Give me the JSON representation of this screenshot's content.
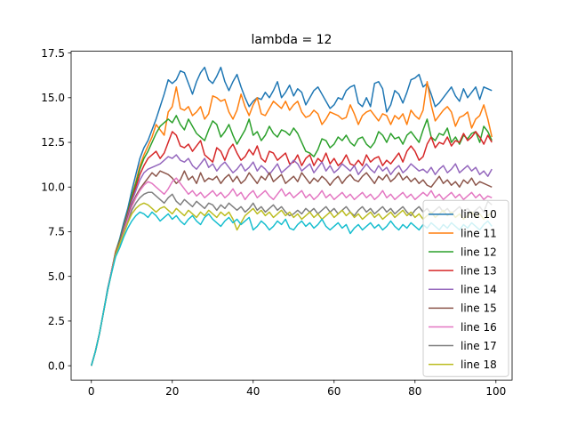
{
  "chart_data": {
    "type": "line",
    "title": "lambda = 12",
    "xlabel": "",
    "ylabel": "",
    "xlim": [
      -5,
      104
    ],
    "ylim": [
      -0.8,
      17.6
    ],
    "x_ticks": [
      0,
      20,
      40,
      60,
      80,
      100
    ],
    "y_ticks": [
      0.0,
      2.5,
      5.0,
      7.5,
      10.0,
      12.5,
      15.0,
      17.5
    ],
    "x_tick_labels": [
      "0",
      "20",
      "40",
      "60",
      "80",
      "100"
    ],
    "y_tick_labels": [
      "0.0",
      "2.5",
      "5.0",
      "7.5",
      "10.0",
      "12.5",
      "15.0",
      "17.5"
    ],
    "grid": false,
    "legend_position": "lower-right",
    "x": [
      0,
      1,
      2,
      3,
      4,
      5,
      6,
      7,
      8,
      9,
      10,
      11,
      12,
      13,
      14,
      15,
      16,
      17,
      18,
      19,
      20,
      21,
      22,
      23,
      24,
      25,
      26,
      27,
      28,
      29,
      30,
      31,
      32,
      33,
      34,
      35,
      36,
      37,
      38,
      39,
      40,
      41,
      42,
      43,
      44,
      45,
      46,
      47,
      48,
      49,
      50,
      51,
      52,
      53,
      54,
      55,
      56,
      57,
      58,
      59,
      60,
      61,
      62,
      63,
      64,
      65,
      66,
      67,
      68,
      69,
      70,
      71,
      72,
      73,
      74,
      75,
      76,
      77,
      78,
      79,
      80,
      81,
      82,
      83,
      84,
      85,
      86,
      87,
      88,
      89,
      90,
      91,
      92,
      93,
      94,
      95,
      96,
      97,
      98,
      99
    ],
    "series": [
      {
        "name": "line 10",
        "color": "#1f77b4",
        "values": [
          0.0,
          0.8,
          1.8,
          3.0,
          4.3,
          5.3,
          6.4,
          7.1,
          8.0,
          8.8,
          9.8,
          10.7,
          11.6,
          12.2,
          12.6,
          13.2,
          13.8,
          14.5,
          15.2,
          16.0,
          15.8,
          16.0,
          16.5,
          16.4,
          15.8,
          15.2,
          15.9,
          16.4,
          16.7,
          16.0,
          15.8,
          16.2,
          16.7,
          15.9,
          15.4,
          15.9,
          16.3,
          15.6,
          15.0,
          14.5,
          14.8,
          15.0,
          14.9,
          15.3,
          15.0,
          15.4,
          15.9,
          15.0,
          15.3,
          15.7,
          15.1,
          15.5,
          15.3,
          14.6,
          15.0,
          15.4,
          15.6,
          15.2,
          14.8,
          14.4,
          14.6,
          15.0,
          14.9,
          15.4,
          15.6,
          15.7,
          14.7,
          14.5,
          15.0,
          14.5,
          15.8,
          15.9,
          15.5,
          14.2,
          14.6,
          15.4,
          15.2,
          14.7,
          15.3,
          16.0,
          16.1,
          16.3,
          15.6,
          15.8,
          15.2,
          14.5,
          14.7,
          15.0,
          15.3,
          15.6,
          15.1,
          14.8,
          15.5,
          15.0,
          15.3,
          15.6,
          14.9,
          15.6,
          15.5,
          15.4
        ]
      },
      {
        "name": "line 11",
        "color": "#ff7f0e",
        "values": [
          0.0,
          0.8,
          1.8,
          3.0,
          4.2,
          5.3,
          6.4,
          7.0,
          7.8,
          8.6,
          9.5,
          10.3,
          11.2,
          11.8,
          12.3,
          12.8,
          13.5,
          13.2,
          12.9,
          14.2,
          14.5,
          15.6,
          14.4,
          14.3,
          14.5,
          14.0,
          14.2,
          14.5,
          13.8,
          14.1,
          15.1,
          15.0,
          14.8,
          14.9,
          14.2,
          13.8,
          14.3,
          15.2,
          14.5,
          14.0,
          14.6,
          15.0,
          14.1,
          14.0,
          14.4,
          14.8,
          14.6,
          14.4,
          14.8,
          14.3,
          14.6,
          14.8,
          14.2,
          13.9,
          14.0,
          14.3,
          14.1,
          13.5,
          13.8,
          14.2,
          14.1,
          14.0,
          13.8,
          13.9,
          14.6,
          14.1,
          13.5,
          14.0,
          14.2,
          14.3,
          14.0,
          13.7,
          14.1,
          14.0,
          13.5,
          14.0,
          13.8,
          14.1,
          13.5,
          14.3,
          14.0,
          13.8,
          14.3,
          15.9,
          14.6,
          13.7,
          14.0,
          14.3,
          14.5,
          14.2,
          13.4,
          13.9,
          14.0,
          14.2,
          13.3,
          13.8,
          14.0,
          14.6,
          13.8,
          12.8
        ]
      },
      {
        "name": "line 12",
        "color": "#2ca02c",
        "values": [
          0.0,
          0.8,
          1.8,
          3.0,
          4.2,
          5.3,
          6.3,
          7.0,
          7.8,
          8.6,
          9.5,
          10.2,
          11.0,
          11.6,
          12.0,
          12.5,
          13.0,
          13.4,
          13.6,
          13.8,
          13.6,
          14.0,
          13.5,
          13.2,
          13.8,
          13.4,
          13.0,
          12.8,
          12.6,
          13.2,
          13.7,
          13.5,
          12.8,
          13.1,
          13.5,
          12.9,
          12.4,
          12.8,
          13.2,
          13.8,
          12.9,
          13.1,
          12.6,
          12.9,
          13.4,
          13.0,
          12.8,
          13.2,
          13.1,
          12.9,
          13.3,
          13.0,
          12.5,
          12.0,
          11.9,
          11.7,
          12.1,
          12.7,
          12.6,
          12.2,
          12.4,
          12.8,
          12.6,
          12.9,
          12.5,
          12.3,
          12.7,
          12.8,
          12.4,
          12.2,
          12.5,
          13.1,
          12.9,
          12.5,
          13.0,
          12.7,
          12.8,
          12.4,
          12.9,
          13.1,
          12.8,
          12.5,
          13.2,
          13.8,
          12.8,
          12.6,
          13.0,
          12.9,
          13.3,
          12.5,
          12.8,
          12.4,
          12.9,
          12.7,
          13.0,
          13.1,
          12.5,
          13.4,
          13.1,
          12.6
        ]
      },
      {
        "name": "line 13",
        "color": "#d62728",
        "values": [
          0.0,
          0.8,
          1.8,
          3.0,
          4.2,
          5.3,
          6.3,
          6.9,
          7.7,
          8.5,
          9.3,
          10.0,
          10.7,
          11.2,
          11.6,
          11.8,
          12.0,
          11.6,
          11.9,
          12.5,
          13.1,
          12.9,
          12.3,
          12.2,
          12.4,
          12.0,
          12.3,
          12.6,
          11.8,
          11.6,
          11.4,
          12.2,
          12.0,
          11.5,
          12.1,
          12.4,
          11.9,
          11.5,
          11.7,
          12.1,
          11.8,
          12.3,
          11.6,
          11.4,
          12.0,
          11.9,
          11.5,
          11.7,
          11.9,
          11.3,
          11.4,
          11.8,
          11.2,
          11.6,
          11.8,
          11.2,
          11.6,
          11.4,
          11.9,
          11.3,
          11.6,
          11.2,
          11.4,
          11.8,
          11.3,
          11.2,
          11.5,
          11.2,
          11.8,
          11.4,
          11.6,
          11.7,
          11.2,
          11.5,
          11.3,
          11.6,
          11.9,
          11.4,
          12.0,
          12.3,
          12.0,
          11.5,
          11.7,
          12.4,
          12.8,
          12.2,
          12.5,
          12.4,
          12.8,
          12.3,
          12.6,
          12.5,
          13.0,
          12.6,
          12.8,
          13.1,
          12.8,
          12.4,
          12.9,
          12.5
        ]
      },
      {
        "name": "line 14",
        "color": "#9467bd",
        "values": [
          0.0,
          0.8,
          1.8,
          3.0,
          4.2,
          5.3,
          6.3,
          6.9,
          7.7,
          8.4,
          9.2,
          9.8,
          10.4,
          10.8,
          11.0,
          11.1,
          11.2,
          11.3,
          11.5,
          11.7,
          11.6,
          11.8,
          11.5,
          11.4,
          11.6,
          11.2,
          11.0,
          11.3,
          11.6,
          11.1,
          11.3,
          10.9,
          11.2,
          11.4,
          11.1,
          10.8,
          11.0,
          11.3,
          10.9,
          11.1,
          11.4,
          10.9,
          11.2,
          11.0,
          10.7,
          11.0,
          11.3,
          10.8,
          11.0,
          11.2,
          11.5,
          11.3,
          10.9,
          11.1,
          11.3,
          10.8,
          11.1,
          11.4,
          10.9,
          11.2,
          10.8,
          11.0,
          11.3,
          11.1,
          10.9,
          11.2,
          10.7,
          11.0,
          11.3,
          11.0,
          10.8,
          11.2,
          10.9,
          11.1,
          10.7,
          11.0,
          11.2,
          10.8,
          11.0,
          11.3,
          11.1,
          10.9,
          11.0,
          10.8,
          11.1,
          10.7,
          11.0,
          11.2,
          10.8,
          11.0,
          11.3,
          10.8,
          11.0,
          11.2,
          10.9,
          11.1,
          10.7,
          10.9,
          10.6,
          11.0
        ]
      },
      {
        "name": "line 15",
        "color": "#8c564b",
        "values": [
          0.0,
          0.8,
          1.8,
          3.0,
          4.2,
          5.3,
          6.3,
          6.9,
          7.6,
          8.3,
          9.0,
          9.5,
          9.9,
          10.2,
          10.5,
          10.8,
          10.6,
          10.9,
          10.8,
          10.7,
          10.5,
          10.2,
          10.4,
          10.9,
          10.4,
          10.6,
          10.2,
          10.8,
          10.3,
          10.5,
          10.4,
          10.6,
          10.2,
          10.5,
          10.7,
          10.3,
          10.6,
          10.2,
          10.4,
          10.8,
          10.5,
          10.2,
          10.6,
          10.4,
          10.8,
          10.3,
          10.5,
          10.7,
          10.2,
          10.4,
          10.6,
          10.3,
          10.8,
          10.5,
          10.2,
          10.5,
          10.3,
          10.6,
          10.4,
          10.1,
          10.4,
          10.6,
          10.2,
          10.5,
          10.7,
          10.4,
          10.3,
          10.6,
          10.8,
          10.5,
          10.2,
          10.6,
          10.4,
          10.7,
          10.3,
          10.5,
          10.8,
          10.4,
          10.6,
          10.3,
          10.5,
          10.2,
          10.4,
          10.1,
          10.0,
          10.3,
          10.6,
          10.2,
          10.4,
          10.1,
          10.3,
          10.0,
          10.4,
          10.2,
          10.5,
          10.1,
          10.3,
          10.2,
          10.1,
          10.0
        ]
      },
      {
        "name": "line 16",
        "color": "#e377c2",
        "values": [
          0.0,
          0.8,
          1.8,
          3.0,
          4.2,
          5.3,
          6.2,
          6.8,
          7.5,
          8.2,
          8.9,
          9.4,
          9.8,
          10.1,
          10.3,
          10.2,
          10.0,
          9.8,
          9.6,
          9.9,
          10.3,
          10.5,
          10.2,
          9.9,
          9.6,
          9.8,
          9.5,
          9.7,
          9.4,
          9.6,
          9.8,
          9.5,
          9.7,
          9.4,
          9.6,
          9.9,
          9.5,
          9.7,
          9.3,
          9.6,
          9.8,
          9.4,
          9.6,
          9.8,
          9.5,
          9.3,
          9.6,
          9.9,
          9.5,
          9.7,
          9.4,
          9.6,
          9.8,
          9.4,
          9.6,
          9.3,
          9.5,
          9.8,
          9.4,
          9.6,
          9.3,
          9.5,
          9.7,
          9.4,
          9.6,
          9.3,
          9.5,
          9.7,
          9.4,
          9.6,
          9.3,
          9.5,
          9.8,
          9.4,
          9.6,
          9.3,
          9.5,
          9.7,
          9.4,
          9.6,
          9.3,
          9.5,
          9.7,
          9.5,
          9.8,
          9.4,
          9.6,
          9.3,
          9.5,
          9.7,
          9.4,
          9.6,
          9.3,
          9.5,
          9.7,
          9.4,
          9.6,
          9.3,
          9.5,
          9.4
        ]
      },
      {
        "name": "line 17",
        "color": "#7f7f7f",
        "values": [
          0.0,
          0.8,
          1.8,
          3.0,
          4.2,
          5.2,
          6.2,
          6.8,
          7.4,
          8.0,
          8.7,
          9.1,
          9.4,
          9.6,
          9.7,
          9.7,
          9.5,
          9.3,
          9.1,
          9.4,
          9.6,
          9.2,
          9.0,
          9.3,
          9.1,
          8.9,
          9.2,
          9.0,
          8.8,
          9.1,
          9.0,
          8.7,
          9.0,
          8.8,
          9.1,
          8.9,
          8.7,
          8.9,
          8.6,
          8.8,
          9.1,
          8.7,
          8.9,
          8.6,
          8.8,
          9.0,
          8.7,
          8.9,
          8.6,
          8.4,
          8.5,
          8.7,
          8.5,
          8.8,
          8.6,
          8.8,
          8.5,
          8.7,
          8.9,
          8.6,
          8.8,
          8.5,
          8.7,
          8.9,
          8.6,
          8.4,
          8.7,
          8.9,
          8.6,
          8.8,
          8.5,
          8.7,
          8.9,
          8.6,
          8.8,
          8.5,
          8.7,
          8.9,
          8.6,
          8.4,
          8.7,
          8.9,
          8.6,
          8.8,
          8.5,
          8.7,
          8.9,
          8.6,
          8.8,
          8.5,
          8.7,
          8.9,
          8.6,
          8.8,
          8.5,
          8.7,
          8.9,
          8.6,
          9.2,
          9.0
        ]
      },
      {
        "name": "line 18",
        "color": "#bcbd22",
        "values": [
          0.0,
          0.8,
          1.8,
          3.0,
          4.2,
          5.2,
          6.2,
          6.8,
          7.4,
          8.0,
          8.5,
          8.8,
          9.0,
          9.1,
          9.0,
          8.8,
          8.6,
          8.8,
          8.9,
          8.7,
          8.5,
          8.8,
          8.6,
          8.4,
          8.7,
          8.5,
          8.3,
          8.6,
          8.4,
          8.7,
          8.5,
          8.3,
          8.6,
          8.4,
          8.6,
          8.2,
          7.6,
          8.0,
          8.4,
          8.6,
          8.8,
          8.5,
          8.7,
          8.4,
          8.6,
          8.3,
          8.5,
          8.7,
          8.4,
          8.6,
          8.3,
          8.5,
          8.2,
          8.4,
          8.6,
          8.3,
          8.5,
          8.2,
          8.4,
          8.6,
          8.3,
          8.5,
          8.7,
          8.4,
          8.6,
          8.3,
          8.5,
          8.2,
          8.4,
          8.6,
          8.3,
          8.5,
          8.2,
          8.4,
          8.6,
          8.3,
          8.5,
          8.7,
          8.4,
          8.6,
          8.3,
          8.5,
          8.2,
          8.4,
          8.6,
          8.3,
          8.5,
          8.7,
          8.4,
          8.6,
          8.3,
          8.5,
          8.2,
          8.4,
          8.6,
          8.3,
          8.5,
          8.2,
          8.4,
          8.6
        ]
      },
      {
        "name": "",
        "color": "#17becf",
        "values": [
          0.0,
          0.8,
          1.8,
          3.0,
          4.2,
          5.2,
          6.1,
          6.6,
          7.2,
          7.7,
          8.1,
          8.4,
          8.6,
          8.5,
          8.3,
          8.6,
          8.4,
          8.1,
          8.3,
          8.5,
          8.2,
          8.4,
          8.1,
          7.9,
          8.2,
          8.4,
          8.1,
          7.9,
          8.3,
          8.5,
          8.2,
          8.0,
          7.8,
          8.1,
          8.3,
          8.0,
          8.2,
          7.9,
          8.1,
          8.3,
          7.6,
          7.8,
          8.1,
          7.9,
          7.6,
          7.8,
          8.1,
          7.9,
          8.2,
          7.7,
          7.6,
          7.9,
          8.1,
          7.8,
          8.0,
          7.7,
          7.9,
          8.2,
          7.8,
          7.6,
          7.8,
          8.0,
          7.7,
          7.9,
          7.4,
          7.7,
          7.9,
          7.6,
          7.8,
          8.0,
          7.7,
          7.9,
          7.6,
          7.8,
          8.1,
          7.8,
          7.6,
          7.9,
          7.7,
          8.0,
          7.8,
          7.6,
          7.9,
          7.7,
          8.0,
          7.8,
          7.6,
          7.9,
          7.7,
          8.0,
          7.8,
          7.6,
          7.9,
          7.7,
          8.0,
          7.8,
          7.6,
          7.9,
          8.1,
          7.8
        ]
      }
    ]
  }
}
